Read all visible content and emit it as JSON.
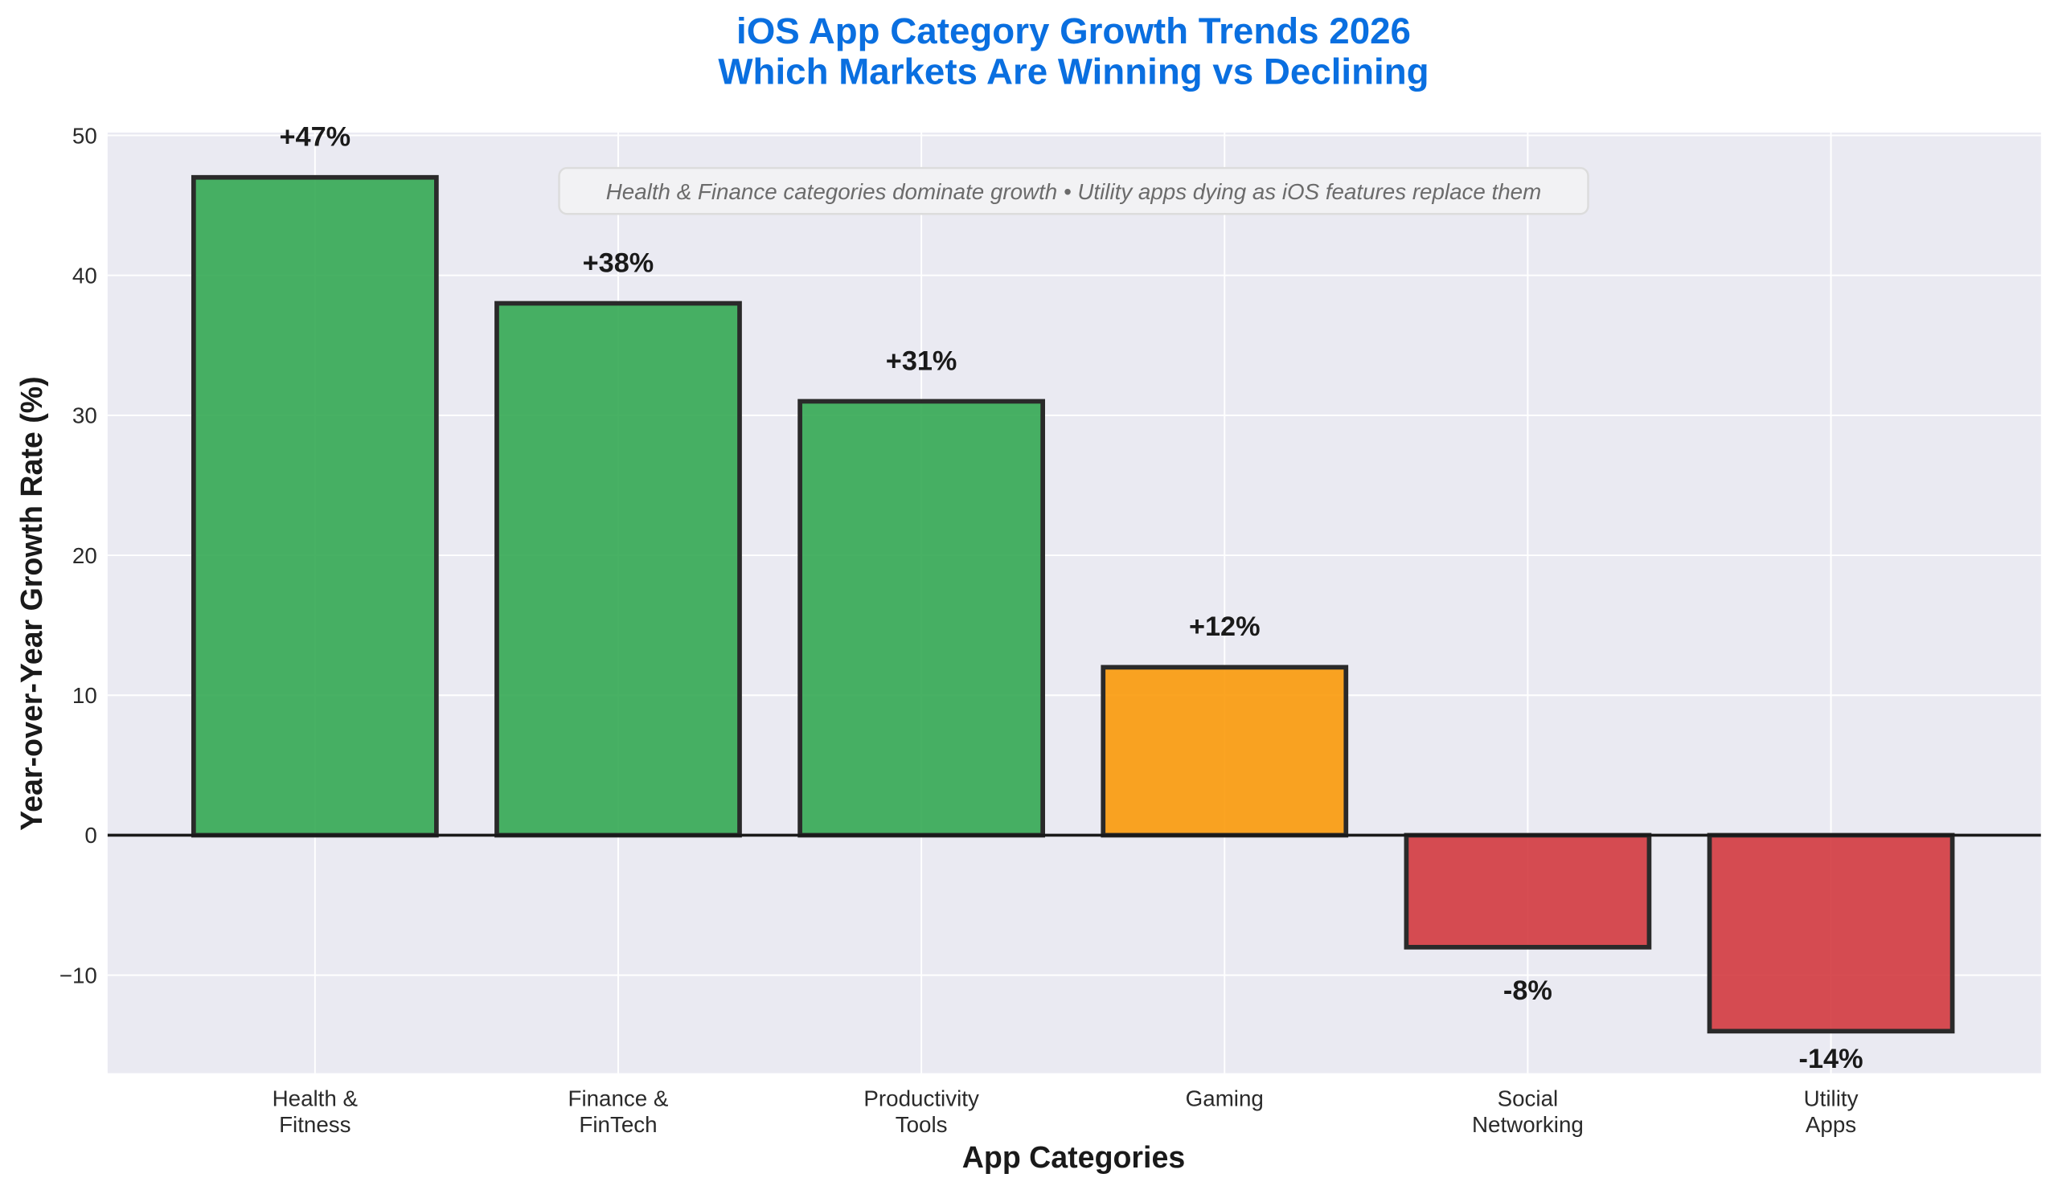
{
  "chart_data": {
    "type": "bar",
    "title": [
      "iOS App Category Growth Trends 2026",
      "Which Markets Are Winning vs Declining"
    ],
    "xlabel": "App Categories",
    "ylabel": "Year-over-Year Growth Rate (%)",
    "categories": [
      [
        "Health &",
        "Fitness"
      ],
      [
        "Finance &",
        "FinTech"
      ],
      [
        "Productivity",
        "Tools"
      ],
      [
        "Gaming"
      ],
      [
        "Social",
        "Networking"
      ],
      [
        "Utility",
        "Apps"
      ]
    ],
    "values": [
      47,
      38,
      31,
      12,
      -8,
      -14
    ],
    "data_labels": [
      "+47%",
      "+38%",
      "+31%",
      "+12%",
      "-8%",
      "-14%"
    ],
    "colors": [
      "#34a853",
      "#34a853",
      "#34a853",
      "#fb9a0a",
      "#d33a3f",
      "#d33a3f"
    ],
    "ylim": [
      -17,
      50.2
    ],
    "yticks": [
      -10,
      0,
      10,
      20,
      30,
      40,
      50
    ],
    "ytick_labels": [
      "−10",
      "0",
      "10",
      "20",
      "30",
      "40",
      "50"
    ],
    "grid": true,
    "annotation": "Health & Finance categories dominate growth • Utility apps dying as iOS features replace them",
    "title_color": "#0a6fe0"
  }
}
